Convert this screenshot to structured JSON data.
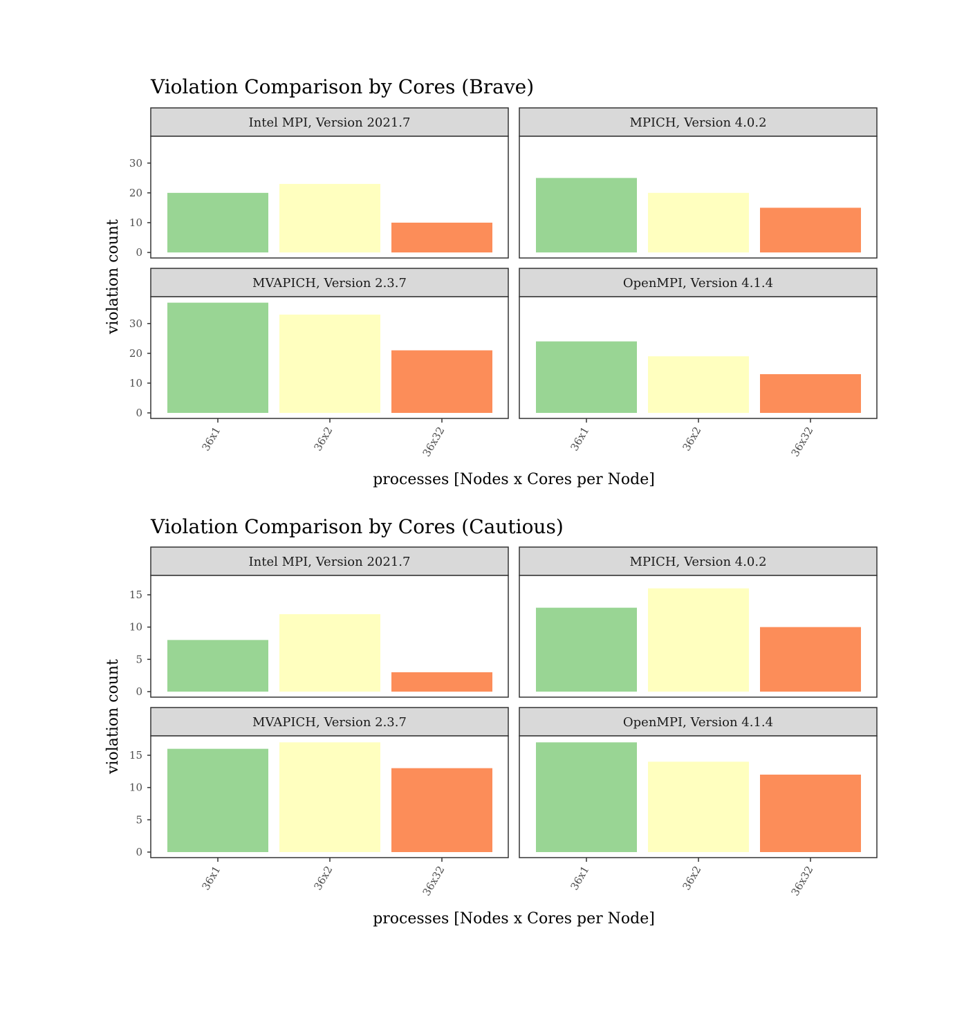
{
  "colors": {
    "36x1": "#99d594",
    "36x2": "#ffffbf",
    "36x32": "#fc8d59",
    "strip_bg": "#d9d9d9",
    "panel_border": "#333333"
  },
  "chart_data": [
    {
      "type": "bar",
      "title": "Violation Comparison by Cores (Brave)",
      "xlabel": "processes [Nodes x Cores per Node]",
      "ylabel": "violation count",
      "categories": [
        "36x1",
        "36x2",
        "36x32"
      ],
      "ylim": [
        0,
        39
      ],
      "yticks": [
        0,
        10,
        20,
        30
      ],
      "ytick_labels": [
        "0",
        "10",
        "20",
        "30"
      ],
      "facets": [
        {
          "label": "Intel MPI, Version 2021.7",
          "values": [
            20,
            23,
            10
          ]
        },
        {
          "label": "MPICH, Version 4.0.2",
          "values": [
            25,
            20,
            15
          ]
        },
        {
          "label": "MVAPICH, Version 2.3.7",
          "values": [
            37,
            33,
            21
          ]
        },
        {
          "label": "OpenMPI, Version 4.1.4",
          "values": [
            24,
            19,
            13
          ]
        }
      ]
    },
    {
      "type": "bar",
      "title": "Violation Comparison by Cores (Cautious)",
      "xlabel": "processes [Nodes x Cores per Node]",
      "ylabel": "violation count",
      "categories": [
        "36x1",
        "36x2",
        "36x32"
      ],
      "ylim": [
        0,
        18
      ],
      "yticks": [
        0,
        5,
        10,
        15
      ],
      "ytick_labels": [
        "0",
        "5",
        "10",
        "15"
      ],
      "facets": [
        {
          "label": "Intel MPI, Version 2021.7",
          "values": [
            8,
            12,
            3
          ]
        },
        {
          "label": "MPICH, Version 4.0.2",
          "values": [
            13,
            16,
            10
          ]
        },
        {
          "label": "MVAPICH, Version 2.3.7",
          "values": [
            16,
            17,
            13
          ]
        },
        {
          "label": "OpenMPI, Version 4.1.4",
          "values": [
            17,
            14,
            12
          ]
        }
      ]
    }
  ]
}
